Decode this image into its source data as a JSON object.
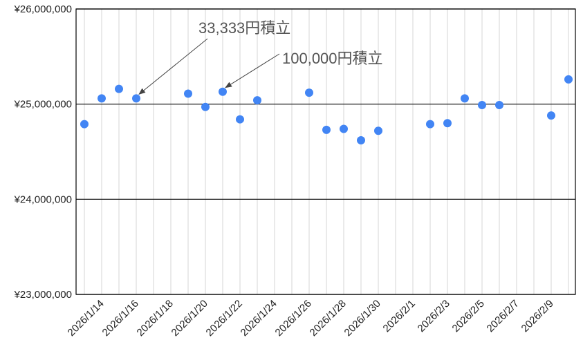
{
  "chart_data": {
    "type": "scatter",
    "ylim": [
      23000000,
      26000000
    ],
    "xlim": [
      "2026-01-13",
      "2026-02-10"
    ],
    "y_ticks": [
      {
        "value": 23000000,
        "label": "¥23,000,000"
      },
      {
        "value": 24000000,
        "label": "¥24,000,000"
      },
      {
        "value": 25000000,
        "label": "¥25,000,000"
      },
      {
        "value": 26000000,
        "label": "¥26,000,000"
      }
    ],
    "x_ticks": [
      {
        "date": "2026-01-14",
        "label": "2026/1/14"
      },
      {
        "date": "2026-01-16",
        "label": "2026/1/16"
      },
      {
        "date": "2026-01-18",
        "label": "2026/1/18"
      },
      {
        "date": "2026-01-20",
        "label": "2026/1/20"
      },
      {
        "date": "2026-01-22",
        "label": "2026/1/22"
      },
      {
        "date": "2026-01-24",
        "label": "2026/1/24"
      },
      {
        "date": "2026-01-26",
        "label": "2026/1/26"
      },
      {
        "date": "2026-01-28",
        "label": "2026/1/28"
      },
      {
        "date": "2026-01-30",
        "label": "2026/1/30"
      },
      {
        "date": "2026-02-01",
        "label": "2026/2/1"
      },
      {
        "date": "2026-02-03",
        "label": "2026/2/3"
      },
      {
        "date": "2026-02-05",
        "label": "2026/2/5"
      },
      {
        "date": "2026-02-07",
        "label": "2026/2/7"
      },
      {
        "date": "2026-02-09",
        "label": "2026/2/9"
      }
    ],
    "grid": true,
    "series": [
      {
        "color": "#4285F4",
        "points": [
          {
            "x": "2026-01-13",
            "y": 24790000
          },
          {
            "x": "2026-01-14",
            "y": 25060000
          },
          {
            "x": "2026-01-15",
            "y": 25160000
          },
          {
            "x": "2026-01-16",
            "y": 25060000
          },
          {
            "x": "2026-01-19",
            "y": 25110000
          },
          {
            "x": "2026-01-20",
            "y": 24970000
          },
          {
            "x": "2026-01-21",
            "y": 25130000
          },
          {
            "x": "2026-01-22",
            "y": 24840000
          },
          {
            "x": "2026-01-23",
            "y": 25040000
          },
          {
            "x": "2026-01-26",
            "y": 25120000
          },
          {
            "x": "2026-01-27",
            "y": 24730000
          },
          {
            "x": "2026-01-28",
            "y": 24740000
          },
          {
            "x": "2026-01-29",
            "y": 24620000
          },
          {
            "x": "2026-01-30",
            "y": 24720000
          },
          {
            "x": "2026-02-02",
            "y": 24790000
          },
          {
            "x": "2026-02-03",
            "y": 24800000
          },
          {
            "x": "2026-02-04",
            "y": 25060000
          },
          {
            "x": "2026-02-05",
            "y": 24990000
          },
          {
            "x": "2026-02-06",
            "y": 24990000
          },
          {
            "x": "2026-02-09",
            "y": 24880000
          },
          {
            "x": "2026-02-10",
            "y": 25260000
          }
        ]
      }
    ],
    "annotations": [
      {
        "text": "33,333円積立",
        "x": "2026-01-16",
        "y": 25060000
      },
      {
        "text": "100,000円積立",
        "x": "2026-01-21",
        "y": 25130000
      }
    ]
  }
}
